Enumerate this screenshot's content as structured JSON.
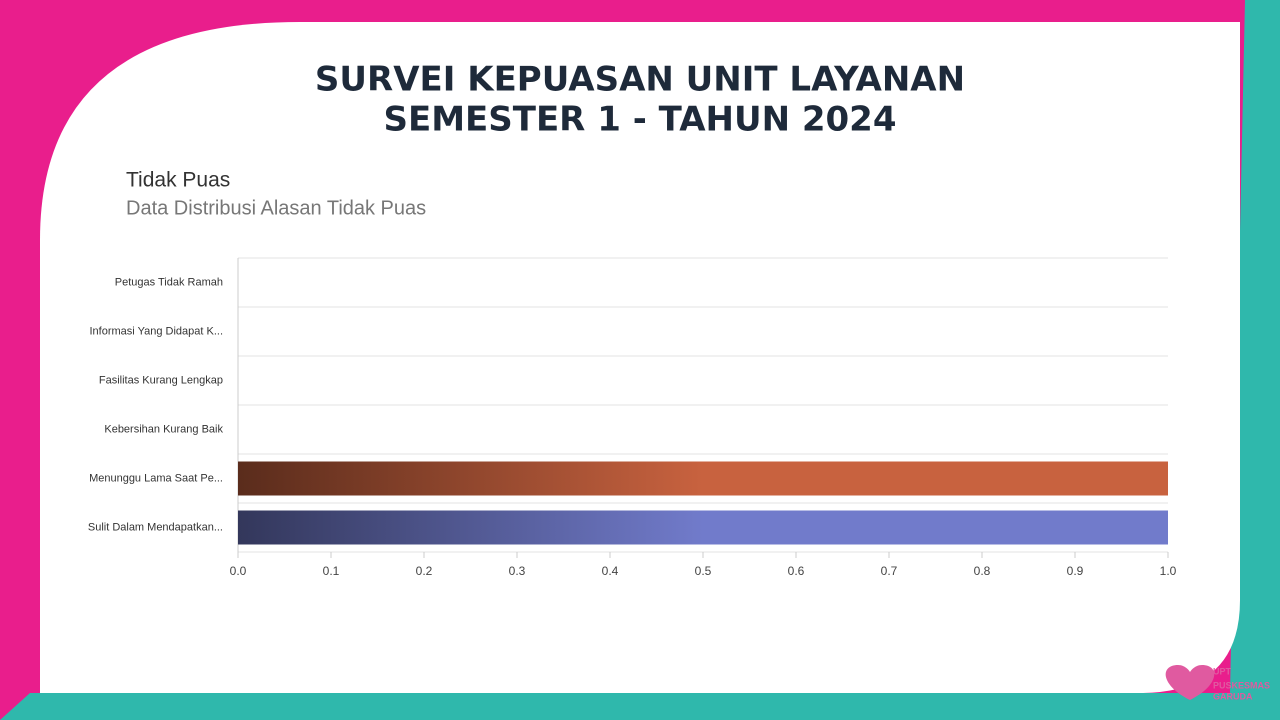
{
  "slide": {
    "title": [
      "SURVEI KEPUASAN UNIT LAYANAN",
      "SEMESTER 1 - TAHUN 2024"
    ],
    "logo": [
      "UPT",
      "PUSKESMAS",
      "GARUDA"
    ]
  },
  "chart_data": {
    "type": "bar",
    "orientation": "horizontal",
    "title": "Tidak Puas",
    "subtitle": "Data Distribusi Alasan Tidak Puas",
    "categories": [
      "Petugas Tidak Ramah",
      "Informasi Yang Didapat K...",
      "Fasilitas Kurang Lengkap",
      "Kebersihan Kurang Baik",
      "Menunggu Lama Saat Pe...",
      "Sulit Dalam Mendapatkan..."
    ],
    "values": [
      0,
      0,
      0,
      0,
      1,
      1
    ],
    "palette": [
      "#c8623f",
      "#717bcb"
    ],
    "xlim": [
      0,
      1
    ],
    "xticks": [
      {
        "value": 0,
        "label": "0.0"
      },
      0.1,
      0.2,
      0.3,
      0.4,
      0.5,
      0.6,
      0.7,
      0.8,
      0.9,
      {
        "value": 1,
        "label": "1.0"
      }
    ]
  }
}
